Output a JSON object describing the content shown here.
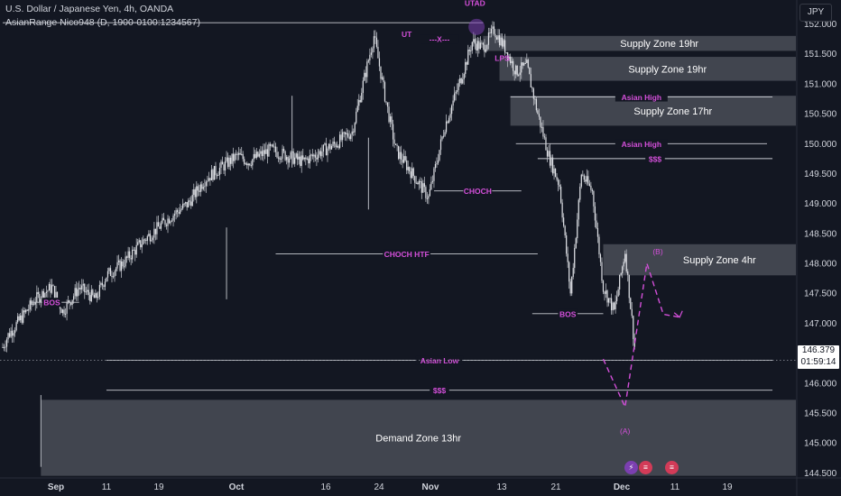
{
  "header": {
    "symbol_line": "U.S. Dollar / Japanese Yen, 4h, OANDA",
    "indicator_line": "AsianRange Nico948 (D, 1900-0100:1234567)"
  },
  "currency_button": "JPY",
  "price_tag": {
    "price": "146.379",
    "countdown": "01:59:14"
  },
  "event_icons": [
    {
      "name": "lightning-icon",
      "glyph": "⚡"
    },
    {
      "name": "us-flag-icon",
      "glyph": "≡"
    },
    {
      "name": "us-flag-icon",
      "glyph": "≡"
    }
  ],
  "colors": {
    "background": "#131722",
    "grid": "#1f2330",
    "candle": "#dfe1e6",
    "zone_fill": "#4a4d57",
    "level_line": "#c9ccd3",
    "label_magenta": "#d34fd9",
    "text": "#d1d4dc",
    "wick": "#b6b9c0"
  },
  "chart_data": {
    "type": "candlestick",
    "symbol": "USDJPY",
    "timeframe": "4h",
    "ylim": [
      144.3,
      152.4
    ],
    "y_ticks": [
      144.5,
      145.0,
      145.5,
      146.0,
      146.5,
      147.0,
      147.5,
      148.0,
      148.5,
      149.0,
      149.5,
      150.0,
      150.5,
      151.0,
      151.5,
      152.0
    ],
    "x_ticks": [
      "Sep",
      "11",
      "19",
      "Oct",
      "16",
      "24",
      "Nov",
      "13",
      "21",
      "Dec",
      "11",
      "19"
    ],
    "path_x": [
      0,
      1,
      6,
      9,
      11,
      14,
      17,
      19,
      22,
      26,
      31,
      34,
      37,
      40,
      43,
      45,
      49,
      52,
      55,
      57,
      61,
      64,
      66,
      68,
      70,
      72,
      75,
      78,
      81,
      84,
      86,
      88,
      90,
      92,
      94,
      96,
      98,
      100,
      102,
      104,
      106,
      108,
      110,
      112,
      114,
      116
    ],
    "path_y": [
      146.6,
      146.8,
      147.4,
      147.6,
      147.2,
      147.6,
      147.4,
      147.8,
      148.0,
      148.4,
      148.8,
      149.0,
      149.4,
      149.6,
      149.8,
      149.7,
      149.9,
      149.8,
      149.7,
      149.8,
      150.0,
      150.2,
      151.0,
      151.8,
      150.8,
      149.9,
      149.5,
      149.1,
      150.3,
      151.1,
      151.7,
      151.6,
      151.9,
      151.6,
      151.2,
      151.3,
      150.5,
      149.8,
      149.3,
      147.5,
      149.5,
      149.2,
      147.6,
      147.2,
      148.2,
      146.38
    ],
    "spikes": [
      {
        "x": 7,
        "price": 144.6
      },
      {
        "x": 41,
        "price": 147.4
      },
      {
        "x": 53,
        "price": 149.6
      },
      {
        "x": 67,
        "price": 148.9
      }
    ],
    "zones": [
      {
        "label": "Supply Zone 19hr",
        "x_from": 88,
        "top": 151.8,
        "bottom": 151.55
      },
      {
        "label": "Supply Zone 19hr",
        "x_from": 91,
        "top": 151.45,
        "bottom": 151.05
      },
      {
        "label": "Supply Zone 17hr",
        "x_from": 93,
        "top": 150.8,
        "bottom": 150.3
      },
      {
        "label": "Supply Zone 4hr",
        "x_from": 110,
        "top": 148.32,
        "bottom": 147.8
      },
      {
        "label": "Demand Zone 13hr",
        "x_from": 7,
        "top": 145.72,
        "bottom": 144.45
      }
    ],
    "levels": [
      {
        "label": "UT",
        "x_from": 74,
        "x_to": 75,
        "price": 151.75
      },
      {
        "label": "---X---",
        "x_from": 74,
        "x_to": 86,
        "price": 151.75
      },
      {
        "label": "UTAD",
        "x_from": 0,
        "x_to": 88,
        "price": 152.02
      },
      {
        "label": "LPS",
        "x_from": 90,
        "x_to": 92,
        "price": 151.4
      },
      {
        "label": "Asian High",
        "x_from": 93,
        "x_to": 141,
        "price": 150.78
      },
      {
        "label": "Asian High",
        "x_from": 94,
        "x_to": 140,
        "price": 150.0
      },
      {
        "label": "$$$",
        "x_from": 98,
        "x_to": 141,
        "price": 149.75
      },
      {
        "label": "CHOCH",
        "x_from": 79,
        "x_to": 95,
        "price": 149.21
      },
      {
        "label": "CHOCH HTF",
        "x_from": 50,
        "x_to": 98,
        "price": 148.16
      },
      {
        "label": "BOS",
        "x_from": 5,
        "x_to": 14,
        "price": 147.35
      },
      {
        "label": "BOS",
        "x_from": 97,
        "x_to": 110,
        "price": 147.16
      },
      {
        "label": "Asian Low",
        "x_from": 19,
        "x_to": 141,
        "price": 146.38
      },
      {
        "label": "$$$",
        "x_from": 19,
        "x_to": 141,
        "price": 145.88
      }
    ],
    "projection": {
      "x": [
        110,
        114,
        118,
        121,
        124
      ],
      "price": [
        146.4,
        145.6,
        148.0,
        147.15,
        147.1
      ],
      "labels": [
        {
          "text": "(A)",
          "x": 114,
          "price": 145.2
        },
        {
          "text": "(B)",
          "x": 120,
          "price": 148.2
        }
      ]
    },
    "last_price": 146.379
  }
}
